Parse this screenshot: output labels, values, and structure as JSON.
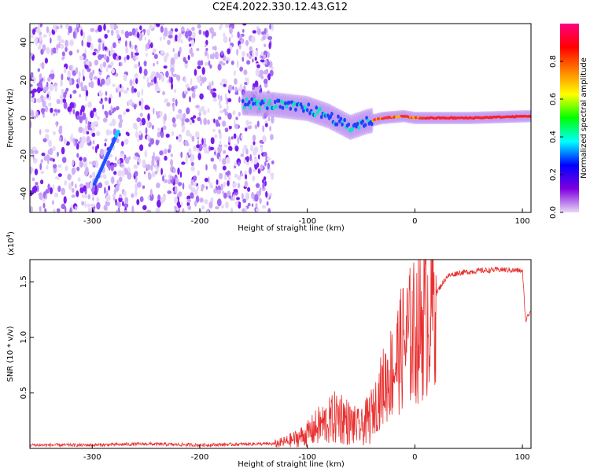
{
  "title": "C2E4.2022.330.12.43.G12",
  "chart_data": [
    {
      "type": "heatmap",
      "xlabel": "Height of straight line (km)",
      "ylabel": "Frequency (Hz)",
      "xlim": [
        -358,
        108
      ],
      "ylim": [
        -50,
        50
      ],
      "xticks": [
        -300,
        -200,
        -100,
        0,
        100
      ],
      "yticks": [
        -40,
        -20,
        0,
        20,
        40
      ],
      "colorbar": {
        "label": "Normalized spectral amplitude",
        "range": [
          0,
          1
        ],
        "ticks": [
          "0.0",
          "0.2",
          "0.4",
          "0.6",
          "0.8"
        ],
        "tick_values": [
          0.0,
          0.2,
          0.4,
          0.6,
          0.8
        ],
        "colormap": [
          "#e8d8f5",
          "#8000e0",
          "#0000ff",
          "#00ffff",
          "#00ff00",
          "#ffff00",
          "#ff8000",
          "#ff0000",
          "#ff0080"
        ]
      },
      "features": {
        "noise_region_x": [
          -358,
          -132
        ],
        "carrier_track": [
          {
            "x": -160,
            "y": 8
          },
          {
            "x": -130,
            "y": 7
          },
          {
            "x": -100,
            "y": 5
          },
          {
            "x": -80,
            "y": 1
          },
          {
            "x": -60,
            "y": -5
          },
          {
            "x": -45,
            "y": -2
          },
          {
            "x": -30,
            "y": 0
          },
          {
            "x": -10,
            "y": 1
          },
          {
            "x": 0,
            "y": 0
          },
          {
            "x": 50,
            "y": 0
          },
          {
            "x": 108,
            "y": 1
          }
        ],
        "diagonal_streak": [
          {
            "x": -298,
            "y": -35
          },
          {
            "x": -275,
            "y": -6
          }
        ]
      }
    },
    {
      "type": "line",
      "xlabel": "Height of straight line (km)",
      "ylabel": "SNR (10 * v/v)",
      "y_multiplier": "(x10",
      "y_multiplier_exp": "4",
      "y_multiplier_close": ")",
      "xlim": [
        -358,
        108
      ],
      "ylim": [
        0,
        1.7
      ],
      "xticks": [
        -300,
        -200,
        -100,
        0,
        100
      ],
      "yticks": [
        0.5,
        1.0,
        1.5
      ],
      "ytick_labels": [
        "0.5",
        "1.0",
        "1.5"
      ],
      "color": "#e83030",
      "series": [
        {
          "points": [
            [
              -358,
              0.03
            ],
            [
              -300,
              0.03
            ],
            [
              -250,
              0.04
            ],
            [
              -200,
              0.03
            ],
            [
              -150,
              0.04
            ],
            [
              -130,
              0.04
            ],
            [
              -120,
              0.06
            ],
            [
              -110,
              0.09
            ],
            [
              -100,
              0.13
            ],
            [
              -90,
              0.2
            ],
            [
              -80,
              0.24
            ],
            [
              -70,
              0.3
            ],
            [
              -60,
              0.22
            ],
            [
              -50,
              0.18
            ],
            [
              -40,
              0.3
            ],
            [
              -30,
              0.55
            ],
            [
              -20,
              0.72
            ],
            [
              -10,
              0.95
            ],
            [
              0,
              1.05
            ],
            [
              10,
              1.2
            ],
            [
              20,
              1.4
            ],
            [
              30,
              1.55
            ],
            [
              40,
              1.58
            ],
            [
              60,
              1.6
            ],
            [
              80,
              1.61
            ],
            [
              100,
              1.6
            ],
            [
              103,
              1.15
            ],
            [
              108,
              1.25
            ]
          ]
        }
      ]
    }
  ]
}
